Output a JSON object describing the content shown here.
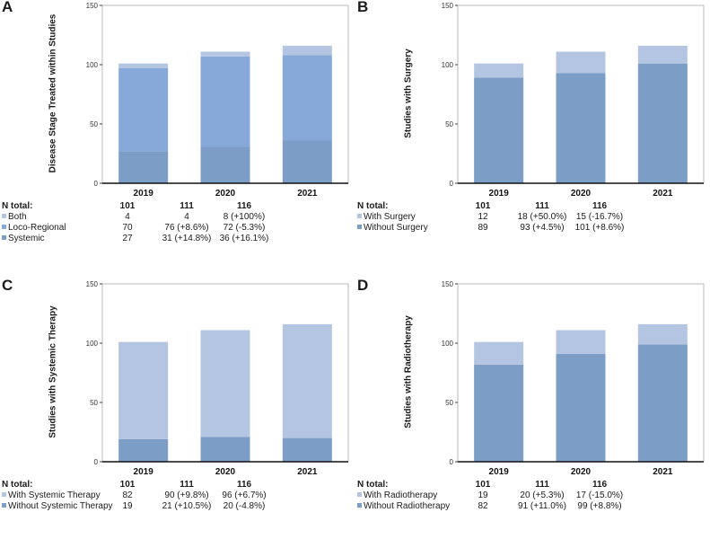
{
  "colors": {
    "light": "#b4c5e1",
    "medium": "#87a9d9",
    "dark": "#7b9dc6",
    "axis": "#111111",
    "frame": "#aaaaaa"
  },
  "common": {
    "ntotal_label": "N total:",
    "totals": [
      "101",
      "111",
      "116"
    ]
  },
  "chart_data": [
    {
      "panel": "A",
      "type": "bar",
      "stacked": true,
      "ylabel": "Disease Stage Treated within Studies",
      "categories": [
        "2019",
        "2020",
        "2021"
      ],
      "yticks": [
        "0",
        "50",
        "100",
        "150"
      ],
      "ylim": [
        0,
        150
      ],
      "series": [
        {
          "name": "Systemic",
          "color": "dark",
          "values": [
            27,
            31,
            36
          ]
        },
        {
          "name": "Loco-Regional",
          "color": "medium",
          "values": [
            70,
            76,
            72
          ]
        },
        {
          "name": "Both",
          "color": "light",
          "values": [
            4,
            4,
            8
          ]
        }
      ],
      "table": [
        {
          "label": "Both",
          "color": "light",
          "cells": [
            "4",
            "4",
            "8 (+100%)"
          ]
        },
        {
          "label": "Loco-Regional",
          "color": "medium",
          "cells": [
            "70",
            "76 (+8.6%)",
            "72 (-5.3%)"
          ]
        },
        {
          "label": "Systemic",
          "color": "dark",
          "cells": [
            "27",
            "31 (+14.8%)",
            "36 (+16.1%)"
          ]
        }
      ]
    },
    {
      "panel": "B",
      "type": "bar",
      "stacked": true,
      "ylabel": "Studies with Surgery",
      "categories": [
        "2019",
        "2020",
        "2021"
      ],
      "yticks": [
        "0",
        "50",
        "100",
        "150"
      ],
      "ylim": [
        0,
        150
      ],
      "series": [
        {
          "name": "Without Surgery",
          "color": "dark",
          "values": [
            89,
            93,
            101
          ]
        },
        {
          "name": "With Surgery",
          "color": "light",
          "values": [
            12,
            18,
            15
          ]
        }
      ],
      "table": [
        {
          "label": "With Surgery",
          "color": "light",
          "cells": [
            "12",
            "18 (+50.0%)",
            "15 (-16.7%)"
          ]
        },
        {
          "label": "Without Surgery",
          "color": "dark",
          "cells": [
            "89",
            "93 (+4.5%)",
            "101 (+8.6%)"
          ]
        }
      ]
    },
    {
      "panel": "C",
      "type": "bar",
      "stacked": true,
      "ylabel": "Studies with Systemic Therapy",
      "categories": [
        "2019",
        "2020",
        "2021"
      ],
      "yticks": [
        "0",
        "50",
        "100",
        "150"
      ],
      "ylim": [
        0,
        150
      ],
      "series": [
        {
          "name": "Without Systemic Therapy",
          "color": "dark",
          "values": [
            19,
            21,
            20
          ]
        },
        {
          "name": "With Systemic Therapy",
          "color": "light",
          "values": [
            82,
            90,
            96
          ]
        }
      ],
      "table": [
        {
          "label": "With Systemic Therapy",
          "color": "light",
          "cells": [
            "82",
            "90 (+9.8%)",
            "96 (+6.7%)"
          ]
        },
        {
          "label": "Without Systemic Therapy",
          "color": "dark",
          "cells": [
            "19",
            "21 (+10.5%)",
            "20 (-4.8%)"
          ]
        }
      ]
    },
    {
      "panel": "D",
      "type": "bar",
      "stacked": true,
      "ylabel": "Studies with Radiotherapy",
      "categories": [
        "2019",
        "2020",
        "2021"
      ],
      "yticks": [
        "0",
        "50",
        "100",
        "150"
      ],
      "ylim": [
        0,
        150
      ],
      "series": [
        {
          "name": "Without Radiotherapy",
          "color": "dark",
          "values": [
            82,
            91,
            99
          ]
        },
        {
          "name": "With Radiotherapy",
          "color": "light",
          "values": [
            19,
            20,
            17
          ]
        }
      ],
      "table": [
        {
          "label": "With Radiotherapy",
          "color": "light",
          "cells": [
            "19",
            "20 (+5.3%)",
            "17 (-15.0%)"
          ]
        },
        {
          "label": "Without Radiotherapy",
          "color": "dark",
          "cells": [
            "82",
            "91 (+11.0%)",
            "99 (+8.8%)"
          ]
        }
      ]
    }
  ]
}
